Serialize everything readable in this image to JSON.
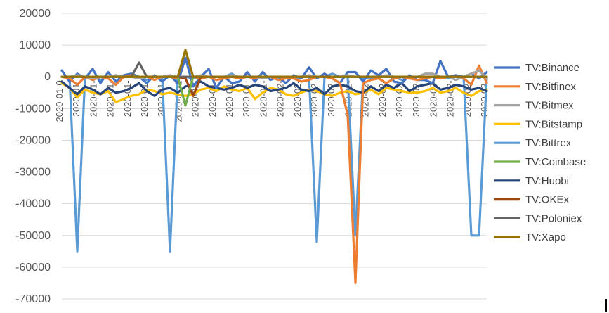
{
  "chart_data": {
    "type": "line",
    "title": "",
    "xlabel": "",
    "ylabel": "",
    "ylim": [
      -70000,
      20000
    ],
    "yticks": [
      20000,
      10000,
      0,
      -10000,
      -20000,
      -30000,
      -40000,
      -50000,
      -60000,
      -70000
    ],
    "ytick_labels": [
      "20000",
      "10000",
      "0",
      "-10000",
      "-20000",
      "-30000",
      "-40000",
      "-50000",
      "-60000",
      "-70000"
    ],
    "grid": "horizontal",
    "legend_position": "right",
    "x_tick_labels": [
      "2020-01-0",
      "2020-01-",
      "2020-01-",
      "2020-01-",
      "2020-01-",
      "2020-01-",
      "2020-01-",
      "2020-01-1",
      "2020-01-",
      "2020-01-",
      "2020-01-",
      "2020-01-",
      "2020-01-",
      "2020-02-",
      "2020-02-",
      "2020-02-",
      "2020-02-",
      "2020-02-",
      "2020-02-",
      "2020-02-",
      "2020-02-",
      "2020-02-",
      "2020-02-",
      "2020-02-",
      "2020-02-",
      "2020-02-"
    ],
    "x": [
      1,
      2,
      3,
      4,
      5,
      6,
      7,
      8,
      9,
      10,
      11,
      12,
      13,
      14,
      15,
      16,
      17,
      18,
      19,
      20,
      21,
      22,
      23,
      24,
      25,
      26,
      27,
      28,
      29,
      30,
      31,
      32,
      33,
      34,
      35,
      36,
      37,
      38,
      39,
      40,
      41,
      42,
      43,
      44,
      45,
      46,
      47,
      48,
      49,
      50,
      51,
      52,
      53,
      54,
      55,
      56
    ],
    "series": [
      {
        "name": "TV:Binance",
        "color": "#4472C4",
        "values": [
          2000,
          -1500,
          1000,
          -500,
          2500,
          -2000,
          1500,
          -1500,
          500,
          1000,
          0,
          -2000,
          500,
          -1500,
          500,
          -2000,
          6000,
          -3000,
          0,
          2500,
          -3500,
          0,
          -2000,
          -1500,
          1500,
          -1500,
          1500,
          -1000,
          0,
          -2000,
          500,
          -500,
          3000,
          -500,
          1000,
          -500,
          -2000,
          1500,
          1500,
          -1500,
          2000,
          500,
          2500,
          -1500,
          -2000,
          500,
          -1000,
          -1000,
          -2000,
          5000,
          0,
          500,
          0,
          1000,
          -500,
          1500
        ]
      },
      {
        "name": "TV:Bitfinex",
        "color": "#ED7D31",
        "values": [
          0,
          -500,
          -2500,
          0,
          -1000,
          0,
          -500,
          -2500,
          0,
          500,
          -500,
          0,
          -1000,
          0,
          0,
          -500,
          0,
          0,
          -500,
          0,
          -1000,
          -500,
          0,
          -500,
          0,
          -500,
          0,
          0,
          -1000,
          -500,
          -500,
          -1500,
          -1000,
          0,
          0,
          -500,
          -2000,
          -12000,
          -65000,
          -2000,
          -1000,
          -500,
          -2000,
          -500,
          0,
          -500,
          -1000,
          -500,
          0,
          -500,
          0,
          0,
          -500,
          -2500,
          3500,
          -2000
        ]
      },
      {
        "name": "TV:Bitmex",
        "color": "#A5A5A5",
        "values": [
          0,
          0,
          500,
          0,
          -500,
          0,
          0,
          500,
          0,
          0,
          -500,
          0,
          0,
          0,
          500,
          0,
          0,
          0,
          500,
          0,
          0,
          0,
          500,
          0,
          0,
          0,
          -500,
          0,
          0,
          0,
          0,
          0,
          500,
          0,
          0,
          0,
          0,
          500,
          0,
          0,
          0,
          0,
          500,
          0,
          0,
          0,
          0,
          1000,
          1000,
          0,
          0,
          -1000,
          0,
          1000,
          2000,
          -500
        ]
      },
      {
        "name": "TV:Bitstamp",
        "color": "#FFC000",
        "values": [
          -2000,
          -3500,
          -6500,
          -4000,
          -5000,
          -5500,
          -4500,
          -8000,
          -7000,
          -6000,
          -5500,
          -4000,
          -4500,
          -5500,
          -5000,
          -5500,
          -6000,
          -5500,
          -4000,
          -3500,
          -4500,
          -3000,
          -4000,
          -4500,
          -3500,
          -7000,
          -5000,
          -3500,
          -4000,
          -5500,
          -6000,
          -5000,
          -4000,
          -4500,
          -5500,
          -6000,
          -5000,
          -4500,
          -5500,
          -5000,
          -4000,
          -5500,
          -3500,
          -4000,
          -4500,
          -5000,
          -5000,
          -4500,
          -3500,
          -5000,
          -4500,
          -3500,
          -5000,
          -6000,
          -4500,
          -4000
        ]
      },
      {
        "name": "TV:Bittrex",
        "color": "#5B9BD5",
        "values": [
          0,
          0,
          -55000,
          0,
          0,
          -1000,
          0,
          0,
          0,
          0,
          0,
          -1000,
          0,
          0,
          -55000,
          0,
          0,
          -500,
          0,
          0,
          0,
          0,
          1000,
          -500,
          0,
          0,
          -500,
          0,
          0,
          0,
          -500,
          0,
          0,
          -52000,
          0,
          1000,
          0,
          0,
          -50000,
          0,
          -500,
          0,
          0,
          0,
          -1000,
          0,
          0,
          0,
          0,
          0,
          -500,
          0,
          0,
          -50000,
          -50000,
          0
        ]
      },
      {
        "name": "TV:Coinbase",
        "color": "#70AD47",
        "values": [
          0,
          0,
          0,
          0,
          0,
          0,
          0,
          0,
          0,
          0,
          0,
          0,
          0,
          0,
          0,
          0,
          -9000,
          0,
          0,
          0,
          0,
          0,
          0,
          0,
          0,
          0,
          0,
          0,
          0,
          0,
          0,
          0,
          0,
          0,
          0,
          0,
          0,
          0,
          0,
          0,
          0,
          0,
          0,
          0,
          0,
          0,
          0,
          0,
          0,
          0,
          0,
          0,
          0,
          0,
          0,
          0
        ]
      },
      {
        "name": "TV:Huobi",
        "color": "#264478",
        "values": [
          -1500,
          -3500,
          -5500,
          -3000,
          -4000,
          -5500,
          -3500,
          -5000,
          -4500,
          -3500,
          -2000,
          -4500,
          -6000,
          -4000,
          -3500,
          -5000,
          -3000,
          -2500,
          -1500,
          -3000,
          -3500,
          -4000,
          -3500,
          -2500,
          -3500,
          -2500,
          -3000,
          -4500,
          -4000,
          -3500,
          -2000,
          -4000,
          -4500,
          -3500,
          -5500,
          -3000,
          -2500,
          -3000,
          -4500,
          -5000,
          -3000,
          -4500,
          -2500,
          -3500,
          -2000,
          -4500,
          -3000,
          -2500,
          -2000,
          -4000,
          -3500,
          -2500,
          -3000,
          -4000,
          -3500,
          -4500
        ]
      },
      {
        "name": "TV:OKEx",
        "color": "#9E480E",
        "values": [
          0,
          0,
          0,
          0,
          0,
          0,
          0,
          0,
          0,
          0,
          0,
          0,
          0,
          0,
          0,
          0,
          -500,
          -6000,
          0,
          0,
          0,
          0,
          0,
          0,
          0,
          0,
          0,
          0,
          0,
          0,
          0,
          0,
          0,
          0,
          0,
          0,
          0,
          0,
          0,
          0,
          0,
          0,
          0,
          0,
          0,
          0,
          0,
          0,
          0,
          0,
          0,
          0,
          0,
          0,
          0,
          0
        ]
      },
      {
        "name": "TV:Poloniex",
        "color": "#636363",
        "values": [
          0,
          0,
          0,
          0,
          0,
          0,
          0,
          0,
          0,
          0,
          4500,
          0,
          0,
          0,
          0,
          0,
          0,
          0,
          0,
          0,
          0,
          0,
          0,
          0,
          0,
          0,
          0,
          0,
          0,
          0,
          0,
          0,
          0,
          0,
          0,
          0,
          0,
          0,
          0,
          0,
          0,
          0,
          0,
          0,
          0,
          0,
          0,
          0,
          0,
          0,
          0,
          0,
          0,
          0,
          0,
          0
        ]
      },
      {
        "name": "TV:Xapo",
        "color": "#997300",
        "values": [
          0,
          0,
          0,
          0,
          0,
          0,
          0,
          0,
          0,
          0,
          0,
          0,
          0,
          0,
          0,
          0,
          8500,
          0,
          0,
          0,
          0,
          0,
          0,
          0,
          0,
          0,
          0,
          0,
          0,
          0,
          0,
          0,
          0,
          0,
          0,
          0,
          0,
          0,
          0,
          0,
          0,
          0,
          0,
          0,
          0,
          0,
          0,
          0,
          0,
          0,
          0,
          0,
          0,
          0,
          0,
          0
        ]
      }
    ]
  }
}
